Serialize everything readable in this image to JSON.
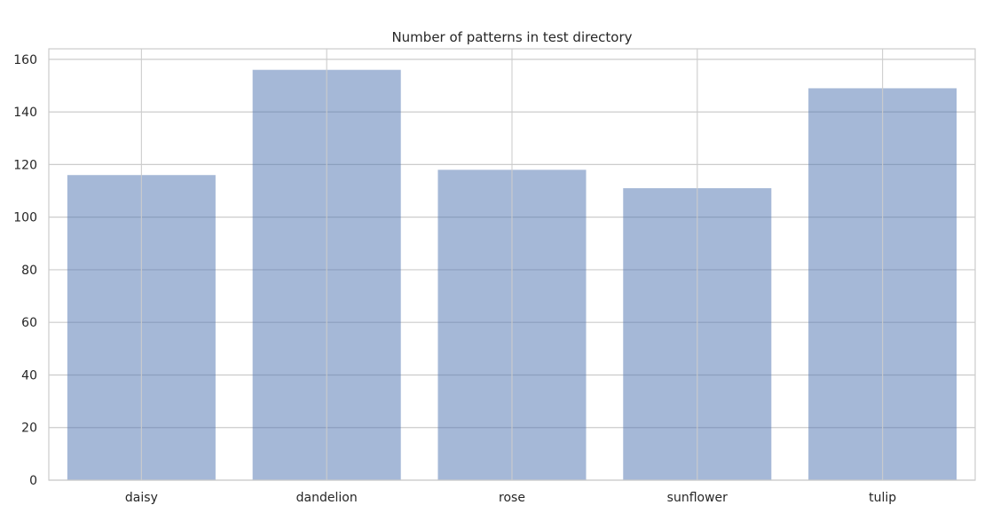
{
  "chart_data": {
    "type": "bar",
    "title": "Number of patterns in test directory",
    "xlabel": "",
    "ylabel": "",
    "categories": [
      "daisy",
      "dandelion",
      "rose",
      "sunflower",
      "tulip"
    ],
    "values": [
      116,
      156,
      118,
      111,
      149
    ],
    "ylim": [
      0,
      164
    ],
    "yticks": [
      "0",
      "20",
      "40",
      "60",
      "80",
      "100",
      "120",
      "140",
      "160"
    ],
    "grid": true,
    "legend": "none",
    "bar_color": "#4c72b0",
    "bar_alpha": 0.5
  }
}
